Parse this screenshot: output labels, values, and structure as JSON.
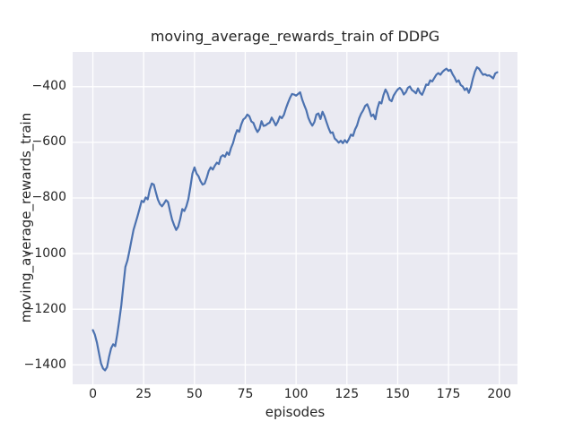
{
  "figure": {
    "title": "moving_average_rewards_train of DDPG"
  },
  "chart_data": {
    "type": "line",
    "title": "moving_average_rewards_train of DDPG",
    "xlabel": "episodes",
    "ylabel": "moving_average_rewards_train",
    "grid": true,
    "legend": "none",
    "xlim": [
      -9.95,
      208.95
    ],
    "ylim": [
      -1470,
      -275
    ],
    "x_ticks": [
      {
        "value": 0,
        "label": "0"
      },
      {
        "value": 25,
        "label": "25"
      },
      {
        "value": 50,
        "label": "50"
      },
      {
        "value": 75,
        "label": "75"
      },
      {
        "value": 100,
        "label": "100"
      },
      {
        "value": 125,
        "label": "125"
      },
      {
        "value": 150,
        "label": "150"
      },
      {
        "value": 175,
        "label": "175"
      },
      {
        "value": 200,
        "label": "200"
      }
    ],
    "y_ticks": [
      {
        "value": -400,
        "label": "−400"
      },
      {
        "value": -600,
        "label": "−600"
      },
      {
        "value": -800,
        "label": "−800"
      },
      {
        "value": -1000,
        "label": "−1000"
      },
      {
        "value": -1200,
        "label": "−1200"
      },
      {
        "value": -1400,
        "label": "−1400"
      }
    ],
    "style": {
      "axes_background": "#eaeaf2",
      "grid_color": "#ffffff",
      "line_color": "#4c72b0",
      "text_color": "#262626",
      "figure_background": "#ffffff"
    },
    "series": [
      {
        "name": "moving_average_rewards_train",
        "x": [
          0,
          1,
          2,
          3,
          4,
          5,
          6,
          7,
          8,
          9,
          10,
          11,
          12,
          13,
          14,
          15,
          16,
          17,
          18,
          19,
          20,
          21,
          22,
          23,
          24,
          25,
          26,
          27,
          28,
          29,
          30,
          31,
          32,
          33,
          34,
          35,
          36,
          37,
          38,
          39,
          40,
          41,
          42,
          43,
          44,
          45,
          46,
          47,
          48,
          49,
          50,
          51,
          52,
          53,
          54,
          55,
          56,
          57,
          58,
          59,
          60,
          61,
          62,
          63,
          64,
          65,
          66,
          67,
          68,
          69,
          70,
          71,
          72,
          73,
          74,
          75,
          76,
          77,
          78,
          79,
          80,
          81,
          82,
          83,
          84,
          85,
          86,
          87,
          88,
          89,
          90,
          91,
          92,
          93,
          94,
          95,
          96,
          97,
          98,
          99,
          100,
          101,
          102,
          103,
          104,
          105,
          106,
          107,
          108,
          109,
          110,
          111,
          112,
          113,
          114,
          115,
          116,
          117,
          118,
          119,
          120,
          121,
          122,
          123,
          124,
          125,
          126,
          127,
          128,
          129,
          130,
          131,
          132,
          133,
          134,
          135,
          136,
          137,
          138,
          139,
          140,
          141,
          142,
          143,
          144,
          145,
          146,
          147,
          148,
          149,
          150,
          151,
          152,
          153,
          154,
          155,
          156,
          157,
          158,
          159,
          160,
          161,
          162,
          163,
          164,
          165,
          166,
          167,
          168,
          169,
          170,
          171,
          172,
          173,
          174,
          175,
          176,
          177,
          178,
          179,
          180,
          181,
          182,
          183,
          184,
          185,
          186,
          187,
          188,
          189,
          190,
          191,
          192,
          193,
          194,
          195,
          196,
          197,
          198,
          199
        ],
        "y": [
          -1275,
          -1292,
          -1320,
          -1358,
          -1395,
          -1413,
          -1420,
          -1408,
          -1370,
          -1340,
          -1326,
          -1333,
          -1290,
          -1240,
          -1185,
          -1115,
          -1048,
          -1025,
          -990,
          -952,
          -915,
          -890,
          -865,
          -838,
          -810,
          -815,
          -798,
          -805,
          -770,
          -748,
          -752,
          -780,
          -806,
          -822,
          -830,
          -820,
          -808,
          -815,
          -848,
          -878,
          -898,
          -915,
          -903,
          -875,
          -840,
          -847,
          -830,
          -804,
          -760,
          -712,
          -690,
          -712,
          -722,
          -740,
          -752,
          -748,
          -728,
          -703,
          -690,
          -698,
          -684,
          -673,
          -678,
          -652,
          -646,
          -652,
          -636,
          -645,
          -620,
          -602,
          -575,
          -556,
          -562,
          -536,
          -518,
          -512,
          -500,
          -506,
          -525,
          -530,
          -549,
          -563,
          -552,
          -524,
          -541,
          -539,
          -533,
          -529,
          -511,
          -524,
          -539,
          -526,
          -507,
          -513,
          -501,
          -478,
          -458,
          -440,
          -426,
          -428,
          -432,
          -426,
          -420,
          -446,
          -466,
          -484,
          -511,
          -528,
          -540,
          -527,
          -500,
          -496,
          -516,
          -490,
          -506,
          -528,
          -549,
          -566,
          -564,
          -586,
          -593,
          -601,
          -594,
          -603,
          -592,
          -601,
          -588,
          -572,
          -577,
          -554,
          -539,
          -514,
          -497,
          -485,
          -469,
          -463,
          -481,
          -506,
          -500,
          -517,
          -479,
          -455,
          -460,
          -430,
          -410,
          -424,
          -447,
          -452,
          -432,
          -420,
          -410,
          -404,
          -412,
          -428,
          -420,
          -404,
          -399,
          -412,
          -417,
          -424,
          -406,
          -422,
          -429,
          -412,
          -392,
          -394,
          -377,
          -381,
          -369,
          -357,
          -351,
          -357,
          -347,
          -340,
          -335,
          -343,
          -339,
          -355,
          -367,
          -383,
          -377,
          -394,
          -399,
          -412,
          -405,
          -422,
          -402,
          -371,
          -346,
          -330,
          -335,
          -347,
          -357,
          -355,
          -360,
          -359,
          -364,
          -370,
          -352,
          -348
        ]
      }
    ]
  }
}
